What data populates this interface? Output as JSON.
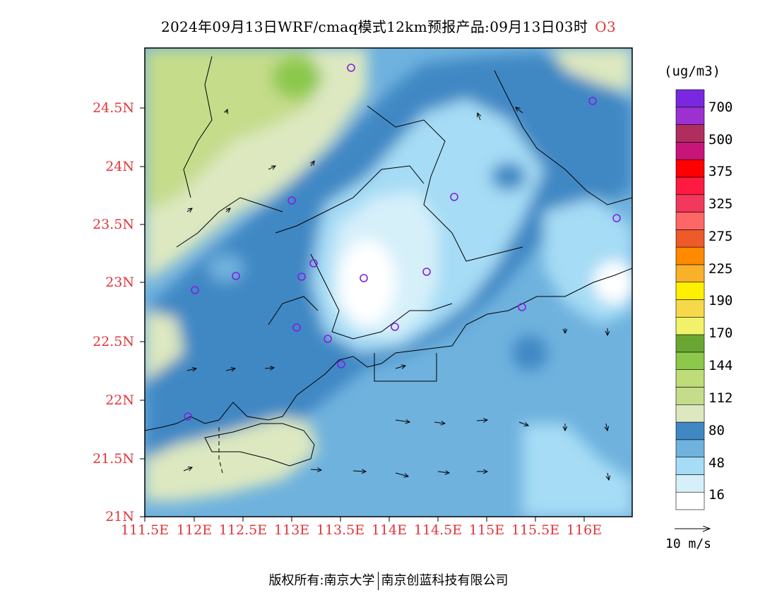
{
  "title": {
    "text": "2024年09月13日WRF/cmaq模式12km预报产品:09月13日03时",
    "species": "O3"
  },
  "axes": {
    "lat_labels": [
      "24.5N",
      "24N",
      "23.5N",
      "23N",
      "22.5N",
      "22N",
      "21.5N",
      "21N"
    ],
    "lon_labels": [
      "111.5E",
      "112E",
      "112.5E",
      "113E",
      "113.5E",
      "114E",
      "114.5E",
      "115E",
      "115.5E",
      "116E"
    ],
    "lat_range": [
      21,
      25
    ],
    "lon_range": [
      111.5,
      116.5
    ]
  },
  "colorbar": {
    "unit": "(ug/m3)",
    "labels": [
      "700",
      "500",
      "375",
      "325",
      "275",
      "225",
      "190",
      "170",
      "144",
      "112",
      "80",
      "48",
      "16"
    ],
    "colors": [
      "#ffffff",
      "#d6f0fa",
      "#a6dcf5",
      "#6fb2de",
      "#3f88c4",
      "#dde8c0",
      "#c5dc8a",
      "#bedc78",
      "#8cc84b",
      "#6aa732",
      "#f2f26a",
      "#f5d94a",
      "#ffef00",
      "#f9b129",
      "#ff8a00",
      "#ee5a2a",
      "#ff6666",
      "#f2385c",
      "#ff1a40",
      "#ff0000",
      "#c8157a",
      "#b02e5e",
      "#9c30d0",
      "#7a28e0"
    ]
  },
  "vector_key": {
    "label": "10 m/s"
  },
  "footer": {
    "left": "版权所有:南京大学",
    "right": "南京创蓝科技有限公司"
  },
  "colors": {
    "accent": "#e2363a",
    "station_marker": "#8020e0"
  }
}
